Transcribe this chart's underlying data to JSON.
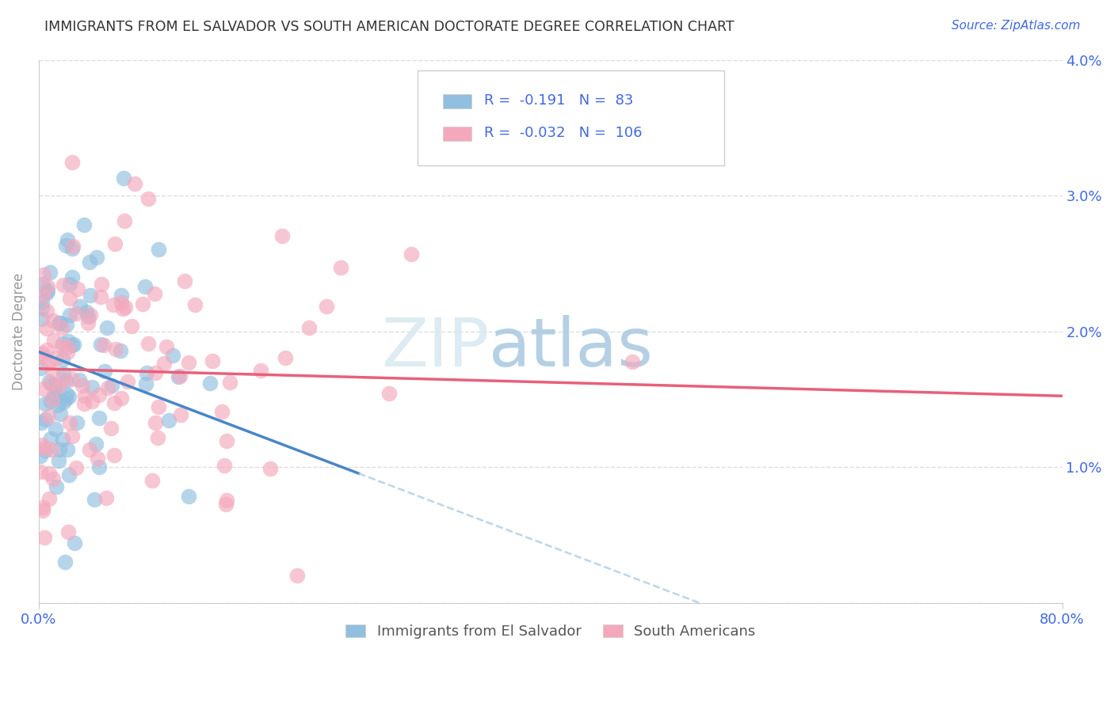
{
  "title": "IMMIGRANTS FROM EL SALVADOR VS SOUTH AMERICAN DOCTORATE DEGREE CORRELATION CHART",
  "source": "Source: ZipAtlas.com",
  "ylabel": "Doctorate Degree",
  "xlim": [
    0.0,
    0.8
  ],
  "ylim": [
    0.0,
    0.04
  ],
  "yticks": [
    0.0,
    0.01,
    0.02,
    0.03,
    0.04
  ],
  "ytick_labels": [
    "",
    "1.0%",
    "2.0%",
    "3.0%",
    "4.0%"
  ],
  "xtick_labels": [
    "0.0%",
    "80.0%"
  ],
  "legend_label1": "Immigrants from El Salvador",
  "legend_label2": "South Americans",
  "r1": -0.191,
  "n1": 83,
  "r2": -0.032,
  "n2": 106,
  "color_blue": "#90bfe0",
  "color_pink": "#f4a8bc",
  "color_blue_line": "#4a86c8",
  "color_pink_line": "#e8607a",
  "color_blue_dash": "#a0c4e0",
  "color_labels": "#4169E1",
  "background": "#ffffff",
  "title_color": "#333333",
  "ylabel_color": "#999999",
  "grid_color": "#dddddd",
  "spine_color": "#cccccc"
}
